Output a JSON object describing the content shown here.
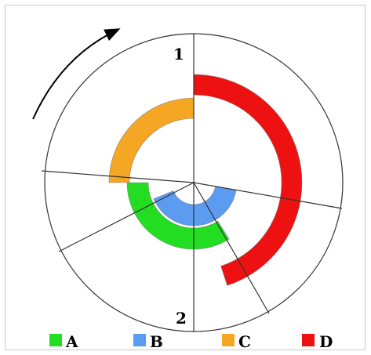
{
  "diagram": {
    "labels": {
      "top": "1",
      "bottom": "2"
    },
    "rotation_direction": "clockwise",
    "legend": [
      {
        "key": "A",
        "color": "#22dd22"
      },
      {
        "key": "B",
        "color": "#5b9bf0"
      },
      {
        "key": "C",
        "color": "#f5a623"
      },
      {
        "key": "D",
        "color": "#ee1111"
      }
    ]
  }
}
